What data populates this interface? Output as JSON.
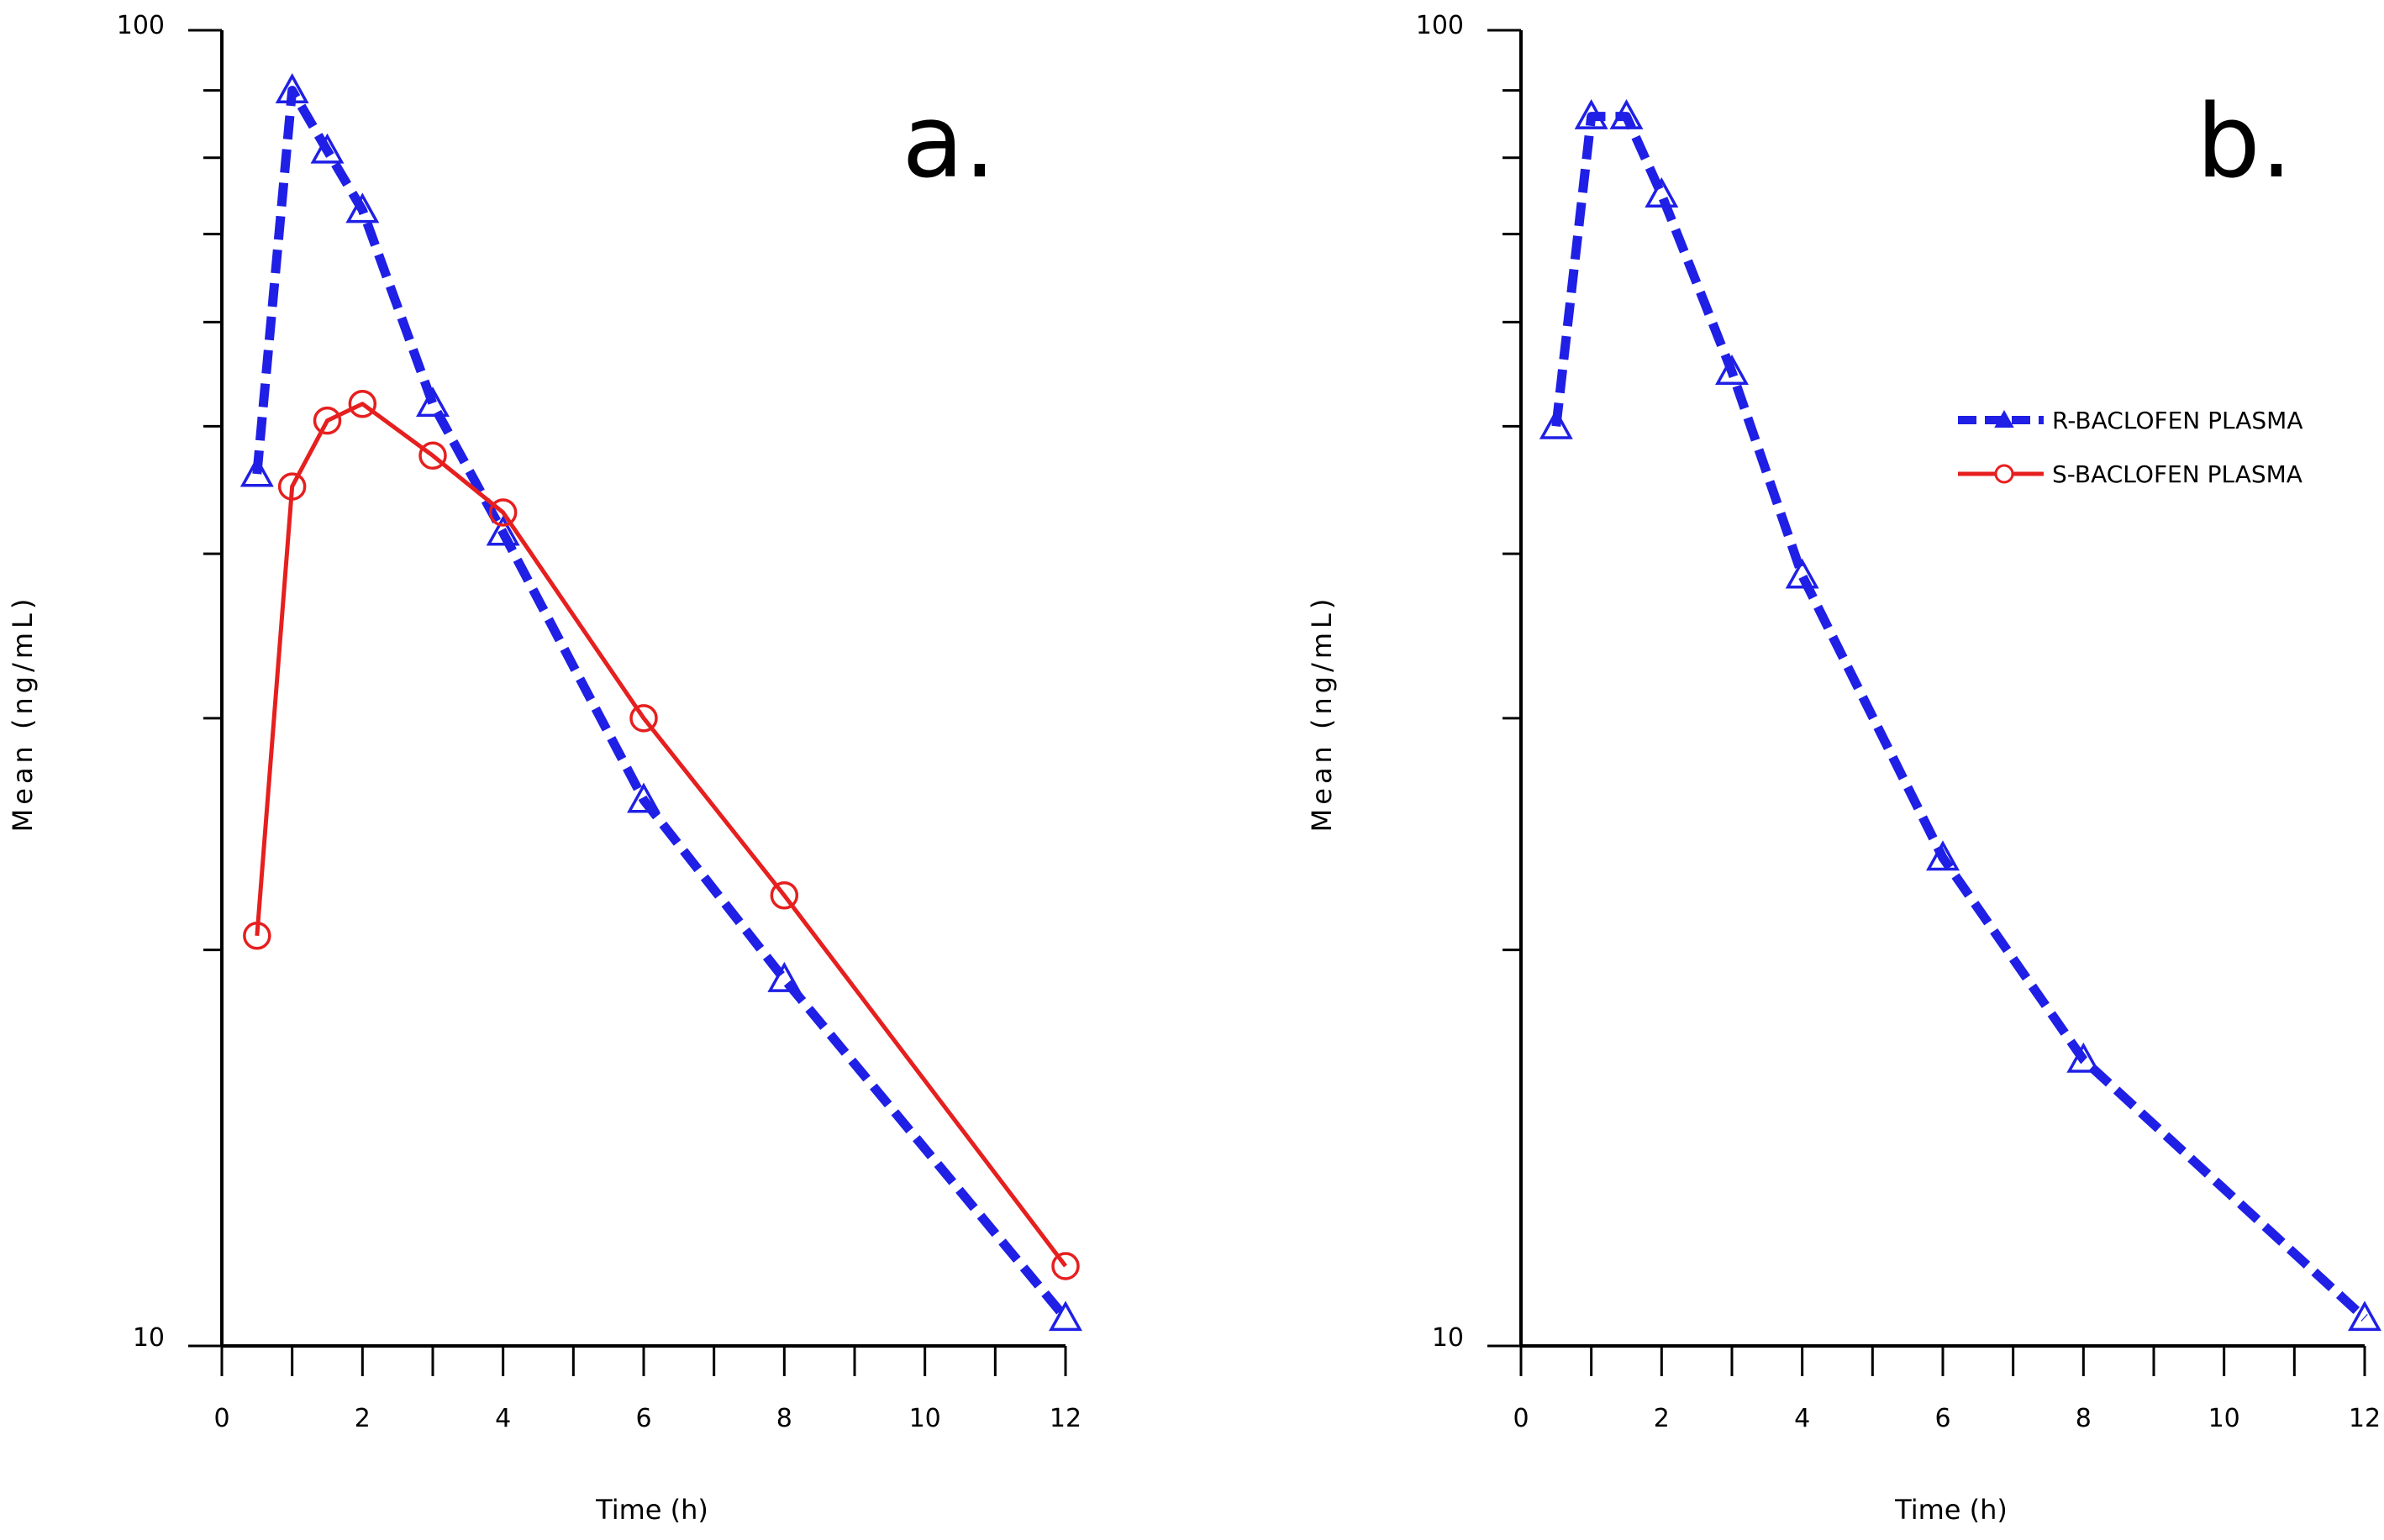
{
  "colors": {
    "r_series": "#1f1fe6",
    "s_series": "#e61f1f",
    "axis": "#000000"
  },
  "chart_data": [
    {
      "type": "line",
      "panel_label": "a.",
      "xlabel": "Time (h)",
      "ylabel": "Mean (ng/mL)",
      "xlim": [
        0,
        12
      ],
      "ylim": [
        10,
        100
      ],
      "y_scale": "log",
      "x_ticks": [
        "0",
        "2",
        "4",
        "6",
        "8",
        "10",
        "12"
      ],
      "y_ticks": [
        "10",
        "100"
      ],
      "grid": false,
      "series": [
        {
          "name": "R-BACLOFEN PLASMA",
          "color": "#1f1fe6",
          "line": "dashed",
          "marker": "triangle",
          "x": [
            0.5,
            1,
            1.5,
            2,
            3,
            4,
            6,
            8,
            12
          ],
          "y": [
            46,
            90,
            81,
            73,
            52,
            41.5,
            26,
            19,
            10.5
          ]
        },
        {
          "name": "S-BACLOFEN PLASMA",
          "color": "#e61f1f",
          "line": "solid",
          "marker": "circle",
          "x": [
            0.5,
            1,
            1.5,
            2,
            3,
            4,
            6,
            8,
            12
          ],
          "y": [
            20.5,
            45,
            50.5,
            52,
            47.5,
            43,
            30,
            22,
            11.5
          ]
        }
      ]
    },
    {
      "type": "line",
      "panel_label": "b.",
      "xlabel": "Time (h)",
      "ylabel": "Mean (ng/mL)",
      "xlim": [
        0,
        12
      ],
      "ylim": [
        10,
        100
      ],
      "y_scale": "log",
      "x_ticks": [
        "0",
        "2",
        "4",
        "6",
        "8",
        "10",
        "12"
      ],
      "y_ticks": [
        "10",
        "100"
      ],
      "grid": false,
      "legend": {
        "placement": "right",
        "entries": [
          {
            "label": "R-BACLOFEN PLASMA",
            "color": "#1f1fe6",
            "line": "dashed",
            "marker": "triangle"
          },
          {
            "label": "S-BACLOFEN PLASMA",
            "color": "#e61f1f",
            "line": "solid",
            "marker": "circle"
          }
        ]
      },
      "series": [
        {
          "name": "R-BACLOFEN PLASMA",
          "color": "#1f1fe6",
          "line": "dashed",
          "marker": "triangle",
          "x": [
            0.5,
            1,
            1.5,
            2,
            3,
            4,
            6,
            8,
            12
          ],
          "y": [
            50,
            86,
            86,
            75,
            55,
            38.5,
            23.5,
            16.5,
            10.5
          ]
        }
      ]
    }
  ]
}
